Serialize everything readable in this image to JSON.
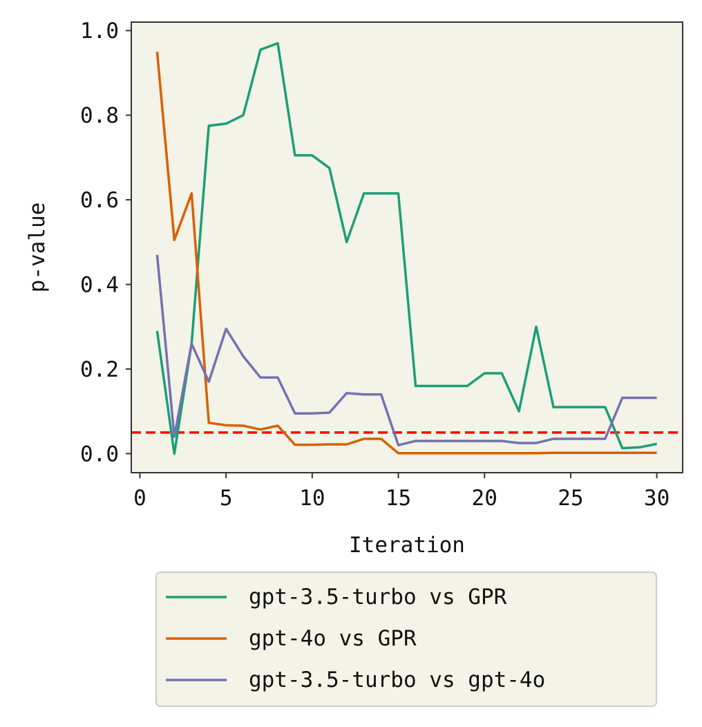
{
  "chart_data": {
    "type": "line",
    "title": "",
    "xlabel": "Iteration",
    "ylabel": "p-value",
    "xlim": [
      -0.5,
      31.5
    ],
    "ylim": [
      -0.045,
      1.02
    ],
    "xticks": [
      0,
      5,
      10,
      15,
      20,
      25,
      30
    ],
    "xtick_labels": [
      "0",
      "5",
      "10",
      "15",
      "20",
      "25",
      "30"
    ],
    "yticks": [
      0.0,
      0.2,
      0.4,
      0.6,
      0.8,
      1.0
    ],
    "ytick_labels": [
      "0.0",
      "0.2",
      "0.4",
      "0.6",
      "0.8",
      "1.0"
    ],
    "grid": false,
    "background": "#f3f3e7",
    "legend_position": "below-plot",
    "x": [
      1,
      2,
      3,
      4,
      5,
      6,
      7,
      8,
      9,
      10,
      11,
      12,
      13,
      14,
      15,
      16,
      17,
      18,
      19,
      20,
      21,
      22,
      23,
      24,
      25,
      26,
      27,
      28,
      29,
      30
    ],
    "series": [
      {
        "name": "gpt-3.5-turbo vs GPR",
        "color": "#1b9e77",
        "values": [
          0.29,
          0.0,
          0.26,
          0.775,
          0.78,
          0.8,
          0.955,
          0.97,
          0.705,
          0.705,
          0.675,
          0.5,
          0.615,
          0.615,
          0.615,
          0.16,
          0.16,
          0.16,
          0.16,
          0.19,
          0.19,
          0.1,
          0.3,
          0.11,
          0.11,
          0.11,
          0.11,
          0.013,
          0.015,
          0.023
        ]
      },
      {
        "name": "gpt-4o vs GPR",
        "color": "#d95f02",
        "values": [
          0.95,
          0.505,
          0.615,
          0.073,
          0.067,
          0.066,
          0.057,
          0.066,
          0.021,
          0.021,
          0.022,
          0.022,
          0.035,
          0.035,
          0.001,
          0.001,
          0.001,
          0.001,
          0.001,
          0.001,
          0.001,
          0.001,
          0.001,
          0.002,
          0.002,
          0.002,
          0.002,
          0.002,
          0.002,
          0.002
        ]
      },
      {
        "name": "gpt-3.5-turbo vs gpt-4o",
        "color": "#7570b3",
        "values": [
          0.47,
          0.04,
          0.26,
          0.17,
          0.295,
          0.23,
          0.18,
          0.18,
          0.095,
          0.095,
          0.097,
          0.143,
          0.14,
          0.14,
          0.02,
          0.03,
          0.03,
          0.03,
          0.03,
          0.03,
          0.03,
          0.025,
          0.025,
          0.035,
          0.035,
          0.035,
          0.035,
          0.132,
          0.132,
          0.132
        ]
      }
    ],
    "reference_line": {
      "y": 0.05,
      "color": "#ff0000",
      "style": "dashed"
    }
  }
}
